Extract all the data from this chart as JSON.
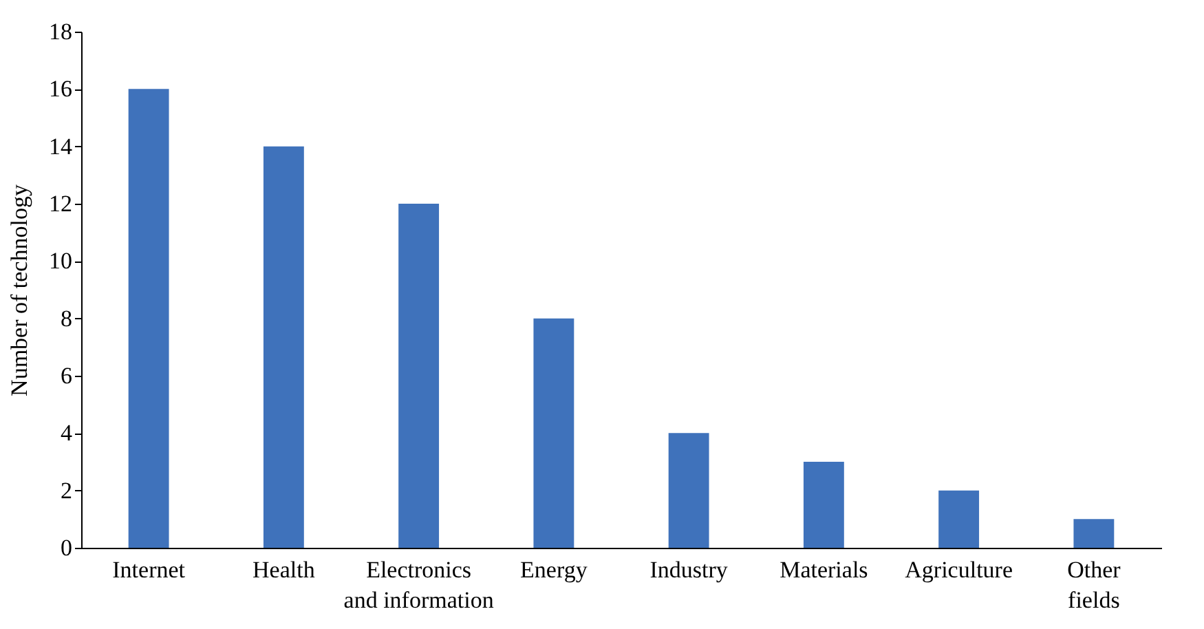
{
  "chart_data": {
    "type": "bar",
    "ylabel": "Number of technology",
    "categories": [
      "Internet",
      "Health",
      "Electronics\nand information",
      "Energy",
      "Industry",
      "Materials",
      "Agriculture",
      "Other\nfields"
    ],
    "values": [
      16,
      14,
      12,
      8,
      4,
      3,
      2,
      1
    ],
    "color": "#3f72bb",
    "ylim": [
      0,
      18
    ],
    "yticks": [
      0,
      2,
      4,
      6,
      8,
      10,
      12,
      14,
      16,
      18
    ],
    "grid": false
  }
}
